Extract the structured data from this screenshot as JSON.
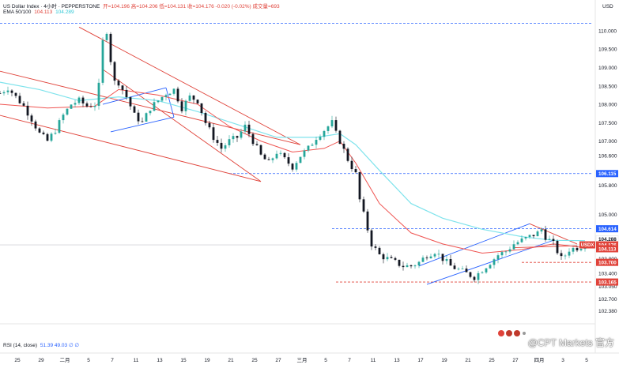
{
  "header": {
    "symbol": "US Dollar Index · 4小时 · PEPPERSTONE",
    "ohlc": "开=104.196  高=104.206  低=104.131  收=104.176  -0.020 (-0.02%)  成交量=693",
    "ema_label": "EMA 50/100",
    "ema50_value": "104.113",
    "ema100_value": "104.289"
  },
  "currency": "USD",
  "rsi_label": "RSI (14, close)",
  "rsi_values": "51.39  49.03  ∅  ∅",
  "watermark": "@CPT Markets 官方",
  "colors": {
    "up": "#26a69a",
    "down": "#131722",
    "ema50": "#ef5350",
    "ema100": "#7fe3ec",
    "channel_red": "#e0433a",
    "channel_blue": "#2962ff",
    "dashed_blue": "#2962ff",
    "dashed_red": "#e0433a",
    "price_tag": "#e0433a"
  },
  "chart_data": {
    "type": "candlestick",
    "symbol": "USDX",
    "y_ticks": [
      "110.000",
      "109.500",
      "109.000",
      "108.500",
      "108.000",
      "107.500",
      "107.000",
      "106.600",
      "105.800",
      "105.000",
      "104.600",
      "103.800",
      "103.400",
      "103.050",
      "102.700",
      "102.380"
    ],
    "x_ticks": [
      "25",
      "29",
      "二月",
      "5",
      "7",
      "11",
      "13",
      "15",
      "19",
      "21",
      "25",
      "27",
      "三月",
      "5",
      "7",
      "11",
      "13",
      "17",
      "19",
      "21",
      "25",
      "27",
      "四月",
      "3",
      "5"
    ],
    "ylim": [
      102.2,
      110.45
    ],
    "price_labels": [
      {
        "text": "106.115",
        "value": 106.115,
        "color": "#2962ff"
      },
      {
        "text": "104.614",
        "value": 104.614,
        "color": "#2962ff"
      },
      {
        "text": "104.288",
        "value": 104.288,
        "color": "#ffffff"
      },
      {
        "text": "USDX",
        "value": 104.176,
        "color": "#e0433a"
      },
      {
        "text": "104.176",
        "value": 104.176,
        "color": "#e0433a"
      },
      {
        "text": "104.113",
        "value": 104.113,
        "color": "#e0433a"
      },
      {
        "text": "103.700",
        "value": 103.7,
        "color": "#e0433a"
      },
      {
        "text": "103.165",
        "value": 103.165,
        "color": "#e0433a"
      }
    ],
    "hlines": [
      {
        "value": 110.2,
        "color": "#2962ff"
      },
      {
        "value": 106.115,
        "color": "#2962ff"
      },
      {
        "value": 104.614,
        "color": "#2962ff"
      },
      {
        "value": 103.7,
        "color": "#e0433a"
      },
      {
        "value": 103.165,
        "color": "#e0433a"
      }
    ],
    "close_path": [
      [
        0,
        108.3
      ],
      [
        2,
        108.45
      ],
      [
        4,
        108.2
      ],
      [
        6,
        107.95
      ],
      [
        8,
        107.6
      ],
      [
        10,
        107.2
      ],
      [
        12,
        107.0
      ],
      [
        14,
        107.3
      ],
      [
        16,
        107.7
      ],
      [
        18,
        108.0
      ],
      [
        20,
        108.1
      ],
      [
        22,
        107.95
      ],
      [
        24,
        108.0
      ],
      [
        25,
        108.5
      ],
      [
        26,
        109.7
      ],
      [
        27,
        110.0
      ],
      [
        28,
        109.2
      ],
      [
        29,
        108.6
      ],
      [
        30,
        108.6
      ],
      [
        32,
        108.2
      ],
      [
        34,
        107.7
      ],
      [
        36,
        107.5
      ],
      [
        38,
        107.9
      ],
      [
        40,
        108.1
      ],
      [
        42,
        108.3
      ],
      [
        44,
        108.4
      ],
      [
        46,
        107.9
      ],
      [
        48,
        108.2
      ],
      [
        50,
        108.1
      ],
      [
        52,
        107.5
      ],
      [
        54,
        107.1
      ],
      [
        56,
        106.8
      ],
      [
        58,
        107.0
      ],
      [
        60,
        107.1
      ],
      [
        62,
        107.4
      ],
      [
        64,
        107.0
      ],
      [
        66,
        106.6
      ],
      [
        68,
        106.4
      ],
      [
        70,
        106.7
      ],
      [
        72,
        106.5
      ],
      [
        74,
        106.3
      ],
      [
        76,
        106.6
      ],
      [
        78,
        106.8
      ],
      [
        80,
        107.1
      ],
      [
        82,
        107.3
      ],
      [
        84,
        107.5
      ],
      [
        85,
        107.2
      ],
      [
        86,
        107.0
      ],
      [
        88,
        106.5
      ],
      [
        90,
        106.1
      ],
      [
        91,
        105.4
      ],
      [
        92,
        105.0
      ],
      [
        94,
        104.2
      ],
      [
        96,
        103.9
      ],
      [
        98,
        103.8
      ],
      [
        100,
        103.7
      ],
      [
        102,
        103.6
      ],
      [
        104,
        103.6
      ],
      [
        106,
        103.7
      ],
      [
        108,
        103.9
      ],
      [
        110,
        104.0
      ],
      [
        112,
        103.8
      ],
      [
        114,
        103.6
      ],
      [
        116,
        103.5
      ],
      [
        118,
        103.4
      ],
      [
        120,
        103.3
      ],
      [
        122,
        103.5
      ],
      [
        124,
        103.7
      ],
      [
        126,
        103.9
      ],
      [
        128,
        104.0
      ],
      [
        130,
        104.2
      ],
      [
        132,
        104.3
      ],
      [
        134,
        104.4
      ],
      [
        136,
        104.5
      ],
      [
        137,
        104.6
      ],
      [
        138,
        104.4
      ],
      [
        140,
        104.2
      ],
      [
        141,
        104.0
      ],
      [
        142,
        103.8
      ],
      [
        143,
        103.9
      ],
      [
        144,
        104.05
      ],
      [
        146,
        104.1
      ],
      [
        148,
        104.18
      ]
    ],
    "ema50_path": [
      [
        0,
        108.0
      ],
      [
        12,
        107.9
      ],
      [
        24,
        107.95
      ],
      [
        30,
        108.4
      ],
      [
        40,
        108.25
      ],
      [
        50,
        108.0
      ],
      [
        58,
        107.4
      ],
      [
        66,
        107.0
      ],
      [
        74,
        106.7
      ],
      [
        82,
        106.8
      ],
      [
        86,
        107.0
      ],
      [
        90,
        106.4
      ],
      [
        96,
        105.3
      ],
      [
        104,
        104.5
      ],
      [
        112,
        104.2
      ],
      [
        122,
        103.95
      ],
      [
        132,
        104.05
      ],
      [
        140,
        104.2
      ],
      [
        148,
        104.1
      ]
    ],
    "ema100_path": [
      [
        0,
        108.6
      ],
      [
        10,
        108.4
      ],
      [
        20,
        108.1
      ],
      [
        30,
        108.2
      ],
      [
        40,
        108.1
      ],
      [
        50,
        107.8
      ],
      [
        60,
        107.45
      ],
      [
        70,
        107.1
      ],
      [
        80,
        107.1
      ],
      [
        86,
        107.2
      ],
      [
        90,
        106.9
      ],
      [
        96,
        106.2
      ],
      [
        104,
        105.3
      ],
      [
        112,
        104.9
      ],
      [
        122,
        104.6
      ],
      [
        132,
        104.4
      ],
      [
        140,
        104.3
      ],
      [
        148,
        104.29
      ]
    ],
    "x_domain": [
      0,
      150
    ]
  }
}
